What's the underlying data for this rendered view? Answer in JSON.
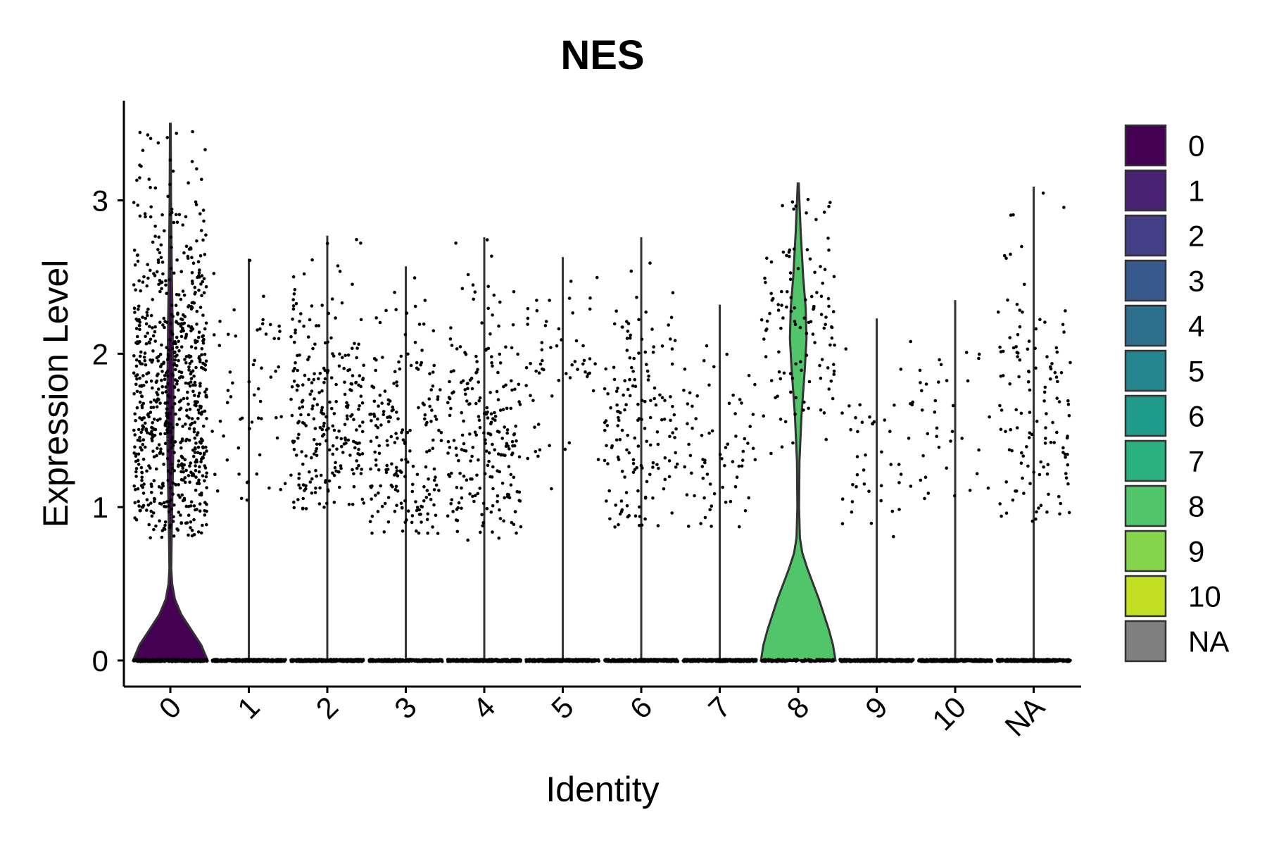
{
  "chart_data": {
    "type": "violin",
    "title": "NES",
    "xlabel": "Identity",
    "ylabel": "Expression Level",
    "ylim": [
      -0.17,
      3.65
    ],
    "yticks": [
      0,
      1,
      2,
      3
    ],
    "grid": false,
    "legend_position": "right",
    "categories": [
      "0",
      "1",
      "2",
      "3",
      "4",
      "5",
      "6",
      "7",
      "8",
      "9",
      "10",
      "NA"
    ],
    "colors": [
      "#440154",
      "#482173",
      "#433E85",
      "#38598C",
      "#2D708E",
      "#25858E",
      "#1E9B8A",
      "#2BB07F",
      "#51C56A",
      "#85D54A",
      "#C2DF23",
      "#7F7F7F"
    ],
    "max_expression": [
      3.5,
      2.62,
      2.77,
      2.57,
      2.76,
      2.63,
      2.76,
      2.32,
      3.11,
      2.23,
      2.35,
      3.09
    ],
    "violin_profiles": [
      {
        "category": "0",
        "points": [
          [
            0,
            0.41
          ],
          [
            0.1,
            0.34
          ],
          [
            0.2,
            0.23
          ],
          [
            0.3,
            0.12
          ],
          [
            0.4,
            0.05
          ],
          [
            0.5,
            0.02
          ],
          [
            0.6,
            0.01
          ],
          [
            0.8,
            0.015
          ],
          [
            1.0,
            0.02
          ],
          [
            1.3,
            0.03
          ],
          [
            1.6,
            0.035
          ],
          [
            1.9,
            0.03
          ],
          [
            2.2,
            0.025
          ],
          [
            2.6,
            0.015
          ],
          [
            3.0,
            0.008
          ],
          [
            3.5,
            0.004
          ]
        ]
      },
      {
        "category": "8",
        "points": [
          [
            0,
            0.45
          ],
          [
            0.1,
            0.42
          ],
          [
            0.2,
            0.37
          ],
          [
            0.3,
            0.31
          ],
          [
            0.4,
            0.25
          ],
          [
            0.5,
            0.18
          ],
          [
            0.6,
            0.11
          ],
          [
            0.7,
            0.05
          ],
          [
            0.8,
            0.02
          ],
          [
            1.0,
            0.01
          ],
          [
            1.3,
            0.015
          ],
          [
            1.6,
            0.04
          ],
          [
            1.9,
            0.08
          ],
          [
            2.1,
            0.1
          ],
          [
            2.3,
            0.09
          ],
          [
            2.5,
            0.06
          ],
          [
            2.8,
            0.03
          ],
          [
            3.11,
            0.006
          ]
        ]
      }
    ],
    "nonzero_range": [
      [
        0.8,
        3.5
      ],
      [
        1.03,
        2.62
      ],
      [
        0.98,
        2.77
      ],
      [
        0.82,
        2.57
      ],
      [
        0.78,
        2.76
      ],
      [
        1.03,
        2.63
      ],
      [
        0.87,
        2.76
      ],
      [
        0.86,
        2.32
      ],
      [
        1.3,
        3.11
      ],
      [
        0.78,
        2.23
      ],
      [
        0.99,
        2.35
      ],
      [
        0.88,
        3.09
      ]
    ],
    "nonzero_center": [
      1.6,
      1.85,
      1.55,
      1.4,
      1.35,
      1.85,
      1.45,
      1.35,
      2.2,
      1.25,
      1.5,
      1.6
    ],
    "nonzero_count": [
      760,
      60,
      260,
      200,
      230,
      60,
      160,
      70,
      120,
      45,
      35,
      130
    ],
    "zero_count": [
      300,
      300,
      300,
      300,
      300,
      300,
      300,
      300,
      120,
      300,
      300,
      300
    ]
  }
}
